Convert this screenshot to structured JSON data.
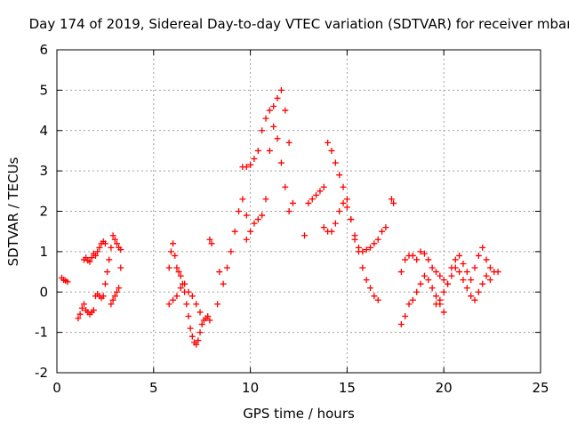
{
  "chart_data": {
    "type": "scatter",
    "title": "Day 174 of 2019, Sidereal Day-to-day VTEC variation (SDTVAR) for receiver mbar",
    "xlabel": "GPS time / hours",
    "ylabel": "SDTVAR / TECUs",
    "xlim": [
      0,
      25
    ],
    "ylim": [
      -2,
      6
    ],
    "xticks": [
      "0",
      "5",
      "10",
      "15",
      "20",
      "25"
    ],
    "yticks": [
      "-2",
      "-1",
      "0",
      "1",
      "2",
      "3",
      "4",
      "5",
      "6"
    ],
    "grid": true,
    "marker": "+",
    "color": "#ff0000",
    "series": [
      {
        "name": "seg1",
        "x": [
          0.25,
          0.35,
          0.45,
          0.55
        ],
        "y": [
          0.35,
          0.3,
          0.28,
          0.25
        ]
      },
      {
        "name": "seg2",
        "x": [
          1.1,
          1.2,
          1.3,
          1.4,
          1.5,
          1.6,
          1.7,
          1.8,
          1.9
        ],
        "y": [
          -0.65,
          -0.55,
          -0.4,
          -0.3,
          -0.45,
          -0.5,
          -0.55,
          -0.5,
          -0.45
        ]
      },
      {
        "name": "seg3",
        "x": [
          1.4,
          1.5,
          1.6,
          1.7,
          1.8,
          1.9,
          2.0,
          2.1,
          2.2,
          2.3,
          2.4,
          2.5
        ],
        "y": [
          0.8,
          0.85,
          0.78,
          0.75,
          0.85,
          0.95,
          0.9,
          1.0,
          1.1,
          1.2,
          1.25,
          1.2
        ]
      },
      {
        "name": "seg4",
        "x": [
          2.0,
          2.1,
          2.2,
          2.3,
          2.4,
          2.5,
          2.6,
          2.7,
          2.8,
          2.9,
          3.0,
          3.1,
          3.2,
          3.3
        ],
        "y": [
          -0.1,
          -0.05,
          -0.1,
          -0.15,
          -0.1,
          0.2,
          0.5,
          0.8,
          1.1,
          1.4,
          1.3,
          1.2,
          1.1,
          1.05
        ]
      },
      {
        "name": "seg5",
        "x": [
          2.8,
          2.9,
          3.0,
          3.1,
          3.2,
          3.3
        ],
        "y": [
          -0.3,
          -0.2,
          -0.1,
          0.0,
          0.1,
          0.6
        ]
      },
      {
        "name": "seg6",
        "x": [
          5.8,
          5.9,
          6.0,
          6.1,
          6.2,
          6.3,
          6.4,
          6.5,
          6.6,
          6.7,
          6.8,
          6.9,
          7.0,
          7.1,
          7.2,
          7.3,
          7.4,
          7.5,
          7.6,
          7.7,
          7.8,
          7.9
        ],
        "y": [
          0.6,
          1.0,
          1.2,
          0.9,
          0.6,
          0.5,
          0.4,
          0.2,
          0.0,
          -0.3,
          -0.6,
          -0.9,
          -1.1,
          -1.25,
          -1.3,
          -1.2,
          -1.0,
          -0.8,
          -0.7,
          -0.65,
          -0.6,
          -0.7
        ]
      },
      {
        "name": "seg7",
        "x": [
          5.8,
          6.0,
          6.2,
          6.4,
          6.6,
          6.8,
          7.0,
          7.2,
          7.4
        ],
        "y": [
          -0.3,
          -0.2,
          -0.1,
          0.1,
          0.2,
          0.0,
          -0.1,
          -0.3,
          -0.5
        ]
      },
      {
        "name": "seg8",
        "x": [
          7.9,
          8.0,
          8.3,
          8.4,
          8.6,
          8.8,
          9.0,
          9.2,
          9.4,
          9.6,
          9.8
        ],
        "y": [
          1.3,
          1.2,
          -0.3,
          0.5,
          0.2,
          0.6,
          1.0,
          1.5,
          2.0,
          2.3,
          1.9
        ]
      },
      {
        "name": "seg9",
        "x": [
          9.6,
          9.8,
          10.0,
          10.2,
          10.4,
          10.6,
          10.8,
          11.0,
          11.2,
          11.4,
          11.6,
          11.8,
          12.0,
          12.2
        ],
        "y": [
          3.1,
          3.1,
          3.15,
          3.3,
          3.5,
          4.0,
          4.3,
          4.5,
          4.6,
          4.8,
          5.0,
          4.5,
          3.7,
          2.2
        ]
      },
      {
        "name": "seg10",
        "x": [
          9.8,
          10.0,
          10.2,
          10.4,
          10.6,
          10.8,
          11.0,
          11.2,
          11.4,
          11.6,
          11.8,
          12.0
        ],
        "y": [
          1.3,
          1.5,
          1.7,
          1.8,
          1.9,
          2.3,
          3.5,
          4.1,
          3.8,
          3.2,
          2.6,
          2.0
        ]
      },
      {
        "name": "seg11",
        "x": [
          12.8,
          13.0,
          13.2,
          13.4,
          13.6,
          13.8,
          14.0,
          14.2,
          14.4,
          14.6,
          14.8,
          15.0,
          15.2,
          15.4,
          15.6,
          15.8,
          16.0,
          16.2,
          16.4,
          16.6,
          16.8,
          17.0
        ],
        "y": [
          1.4,
          2.2,
          2.3,
          2.4,
          2.5,
          2.6,
          3.7,
          3.5,
          3.2,
          2.9,
          2.6,
          2.3,
          1.8,
          1.3,
          1.1,
          1.0,
          1.05,
          1.1,
          1.2,
          1.3,
          1.5,
          1.6
        ]
      },
      {
        "name": "seg12",
        "x": [
          13.8,
          14.0,
          14.2,
          14.4,
          14.6,
          14.8,
          15.0,
          15.2,
          15.4,
          15.6,
          15.8,
          16.0,
          16.2,
          16.4,
          16.6
        ],
        "y": [
          1.6,
          1.5,
          1.5,
          1.7,
          2.0,
          2.2,
          2.1,
          1.8,
          1.4,
          1.0,
          0.6,
          0.3,
          0.1,
          -0.1,
          -0.2
        ]
      },
      {
        "name": "seg13",
        "x": [
          17.3,
          17.4,
          17.8,
          18.0,
          18.2,
          18.4,
          18.6,
          18.8,
          19.0,
          19.2,
          19.4,
          19.6,
          19.8,
          20.0
        ],
        "y": [
          2.3,
          2.2,
          -0.8,
          -0.6,
          -0.3,
          -0.2,
          0.0,
          0.2,
          0.4,
          0.3,
          0.1,
          -0.1,
          -0.3,
          -0.5
        ]
      },
      {
        "name": "seg14",
        "x": [
          17.8,
          18.0,
          18.2,
          18.4,
          18.6,
          18.8,
          19.0,
          19.2,
          19.4,
          19.6,
          19.8,
          20.0,
          20.2,
          20.4,
          20.6,
          20.8,
          21.0,
          21.2,
          21.4,
          21.6,
          21.8,
          22.0,
          22.2,
          22.4,
          22.6,
          22.8
        ],
        "y": [
          0.5,
          0.8,
          0.9,
          0.9,
          0.8,
          1.0,
          0.95,
          0.8,
          0.6,
          0.5,
          0.4,
          0.3,
          0.2,
          0.6,
          0.8,
          0.9,
          0.7,
          0.5,
          0.3,
          0.6,
          0.9,
          1.1,
          0.8,
          0.6,
          0.5,
          0.5
        ]
      },
      {
        "name": "seg15",
        "x": [
          19.6,
          19.8,
          20.0,
          20.2,
          20.4,
          20.6,
          20.8,
          21.0,
          21.2,
          21.4,
          21.6,
          21.8,
          22.0,
          22.2,
          22.4
        ],
        "y": [
          -0.3,
          -0.2,
          0.0,
          0.2,
          0.4,
          0.6,
          0.5,
          0.3,
          0.1,
          -0.1,
          -0.2,
          0.0,
          0.2,
          0.4,
          0.3
        ]
      }
    ]
  }
}
